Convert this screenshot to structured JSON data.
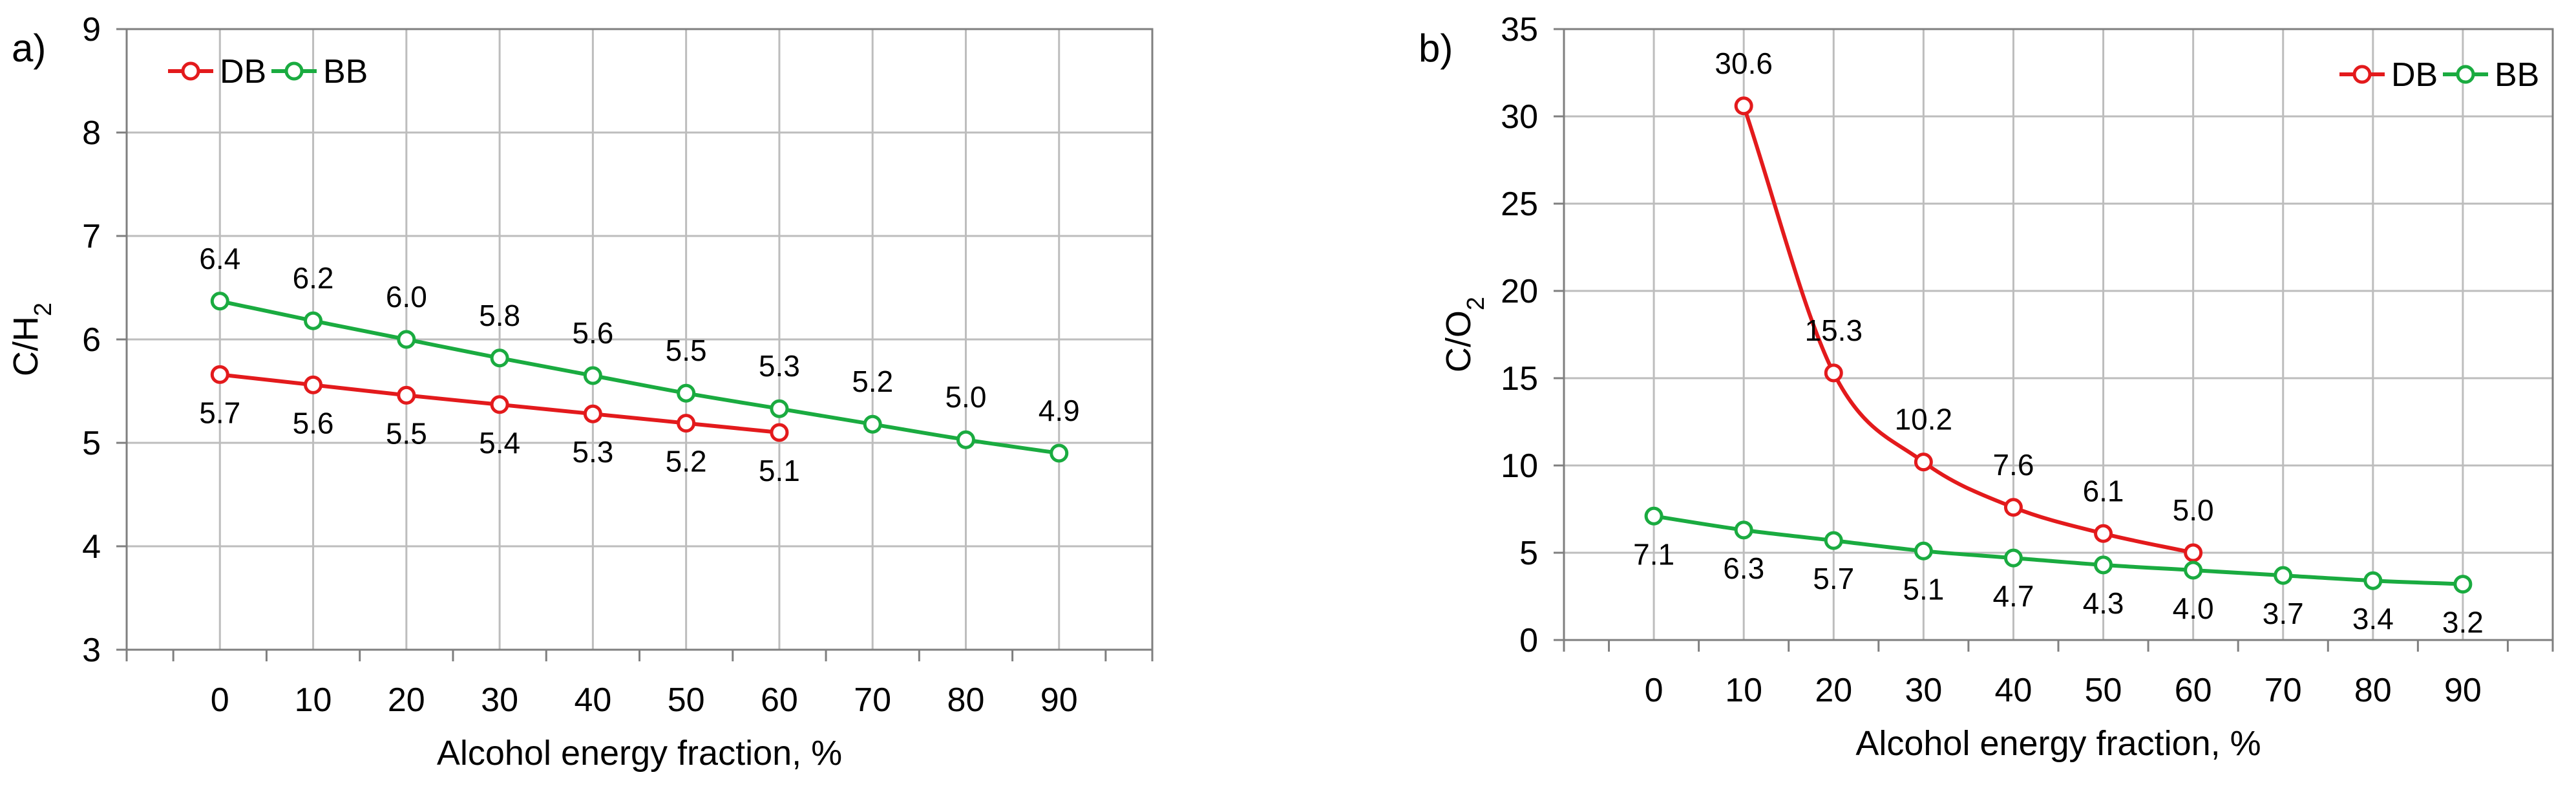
{
  "chart_data": [
    {
      "type": "line",
      "panel_label": "a)",
      "xlabel": "Alcohol energy fraction, %",
      "ylabel_main": "C/H",
      "ylabel_sub": "2",
      "x_ticks": [
        0,
        10,
        20,
        30,
        40,
        50,
        60,
        70,
        80,
        90
      ],
      "xlim": [
        -10,
        100
      ],
      "ylim": [
        3,
        9
      ],
      "y_ticks": [
        3,
        4,
        5,
        6,
        7,
        8,
        9
      ],
      "grid": true,
      "legend_position": "top-left",
      "series": [
        {
          "name": "DB",
          "color": "#e31a1c",
          "x": [
            0,
            10,
            20,
            30,
            40,
            50,
            60
          ],
          "values": [
            5.66,
            5.56,
            5.46,
            5.37,
            5.28,
            5.19,
            5.1
          ],
          "labels": [
            "5.7",
            "5.6",
            "5.5",
            "5.4",
            "5.3",
            "5.2",
            "5.1"
          ],
          "label_position": "below"
        },
        {
          "name": "BB",
          "color": "#1aab40",
          "x": [
            0,
            10,
            20,
            30,
            40,
            50,
            60,
            70,
            80,
            90
          ],
          "values": [
            6.37,
            6.18,
            6.0,
            5.82,
            5.65,
            5.48,
            5.33,
            5.18,
            5.03,
            4.9
          ],
          "labels": [
            "6.4",
            "6.2",
            "6.0",
            "5.8",
            "5.6",
            "5.5",
            "5.3",
            "5.2",
            "5.0",
            "4.9"
          ],
          "label_position": "above"
        }
      ]
    },
    {
      "type": "line",
      "panel_label": "b)",
      "xlabel": "Alcohol energy fraction, %",
      "ylabel_main": "C/O",
      "ylabel_sub": "2",
      "x_ticks": [
        0,
        10,
        20,
        30,
        40,
        50,
        60,
        70,
        80,
        90
      ],
      "xlim": [
        -10,
        100
      ],
      "ylim": [
        0,
        35
      ],
      "y_ticks": [
        0,
        5,
        10,
        15,
        20,
        25,
        30,
        35
      ],
      "grid": true,
      "legend_position": "top-right",
      "series": [
        {
          "name": "DB",
          "color": "#e31a1c",
          "x": [
            10,
            20,
            30,
            40,
            50,
            60
          ],
          "values": [
            30.6,
            15.3,
            10.2,
            7.6,
            6.1,
            5.0
          ],
          "labels": [
            "30.6",
            "15.3",
            "10.2",
            "7.6",
            "6.1",
            "5.0"
          ],
          "label_position": "above"
        },
        {
          "name": "BB",
          "color": "#1aab40",
          "x": [
            0,
            10,
            20,
            30,
            40,
            50,
            60,
            70,
            80,
            90
          ],
          "values": [
            7.1,
            6.3,
            5.7,
            5.1,
            4.7,
            4.3,
            4.0,
            3.7,
            3.4,
            3.2
          ],
          "labels": [
            "7.1",
            "6.3",
            "5.7",
            "5.1",
            "4.7",
            "4.3",
            "4.0",
            "3.7",
            "3.4",
            "3.2"
          ],
          "label_position": "below"
        }
      ]
    }
  ]
}
